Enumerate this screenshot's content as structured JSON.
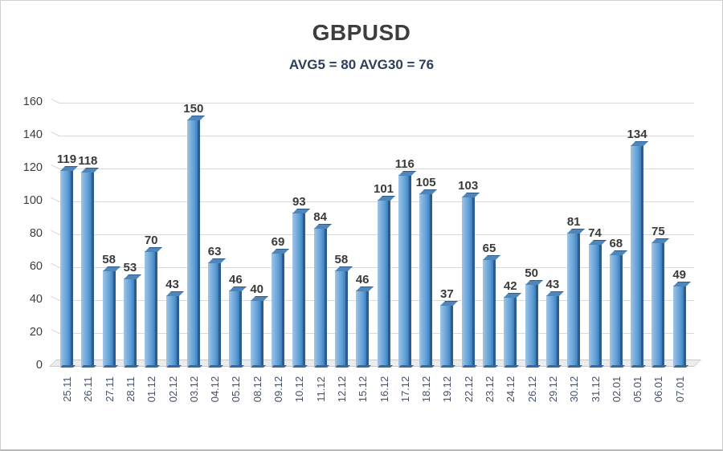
{
  "chart_data": {
    "type": "bar",
    "title": "GBPUSD",
    "subtitle": "AVG5 = 80 AVG30 = 76",
    "categories": [
      "25.11",
      "26.11",
      "27.11",
      "28.11",
      "01.12",
      "02.12",
      "03.12",
      "04.12",
      "05.12",
      "08.12",
      "09.12",
      "10.12",
      "11.12",
      "12.12",
      "15.12",
      "16.12",
      "17.12",
      "18.12",
      "19.12",
      "22.12",
      "23.12",
      "24.12",
      "26.12",
      "29.12",
      "30.12",
      "31.12",
      "02.01",
      "05.01",
      "06.01",
      "07.01"
    ],
    "values": [
      119,
      118,
      58,
      53,
      70,
      43,
      150,
      63,
      46,
      40,
      69,
      93,
      84,
      58,
      46,
      101,
      116,
      105,
      37,
      103,
      65,
      42,
      50,
      43,
      81,
      74,
      68,
      134,
      75,
      49
    ],
    "xlabel": "",
    "ylabel": "",
    "ylim": [
      0,
      160
    ],
    "yticks": [
      0,
      20,
      40,
      60,
      80,
      100,
      120,
      140,
      160
    ],
    "grid": true,
    "legend": "none",
    "style": "3d-column",
    "colors": {
      "bar_face": "#5b9bd5",
      "bar_light": "#9fc5e8",
      "bar_dark": "#2d5c90",
      "grid": "#d9d9d9",
      "floor_fill": "#ececec",
      "floor_edge": "#c9c9c9",
      "title": "#3d3d3d",
      "subtitle": "#2d3e59",
      "value_label": "#3a3a3a",
      "axis_x_label": "#44506a",
      "axis_y_label": "#3c3c3c"
    }
  }
}
